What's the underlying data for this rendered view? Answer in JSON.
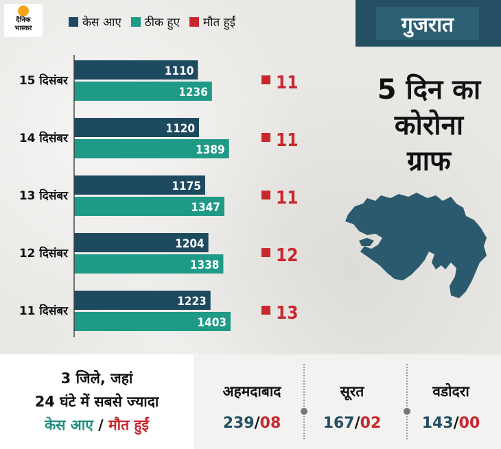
{
  "logo": {
    "line1": "दैनिक",
    "line2": "भास्कर"
  },
  "state": "गुजरात",
  "title_lines": [
    "5 दिन का",
    "कोरोना",
    "ग्राफ"
  ],
  "colors": {
    "cases": "#1e4a5f",
    "recovered": "#1e9a86",
    "deaths": "#c8272e",
    "map": "#2b5a6e"
  },
  "chart_data": {
    "type": "bar",
    "orientation": "horizontal",
    "categories": [
      "15 दिसंबर",
      "14 दिसंबर",
      "13 दिसंबर",
      "12 दिसंबर",
      "11 दिसंबर"
    ],
    "series": [
      {
        "name": "केस आए",
        "values": [
          1110,
          1120,
          1175,
          1204,
          1223
        ]
      },
      {
        "name": "ठीक हुए",
        "values": [
          1236,
          1389,
          1347,
          1338,
          1403
        ]
      },
      {
        "name": "मौत हुईं",
        "values": [
          11,
          11,
          11,
          12,
          13
        ]
      }
    ],
    "legend_position": "top",
    "grid": false
  },
  "footer": {
    "headline": [
      "3 जिले, जहां",
      "24 घंटे में सबसे ज्यादा"
    ],
    "headline_cases": "केस आए",
    "headline_sep": "/",
    "headline_deaths": "मौत हुईं",
    "cities": [
      {
        "name": "अहमदाबाद",
        "cases": "239",
        "sep": "/",
        "deaths": "08"
      },
      {
        "name": "सूरत",
        "cases": "167",
        "sep": "/",
        "deaths": "02"
      },
      {
        "name": "वडोदरा",
        "cases": "143",
        "sep": "/",
        "deaths": "00"
      }
    ]
  }
}
